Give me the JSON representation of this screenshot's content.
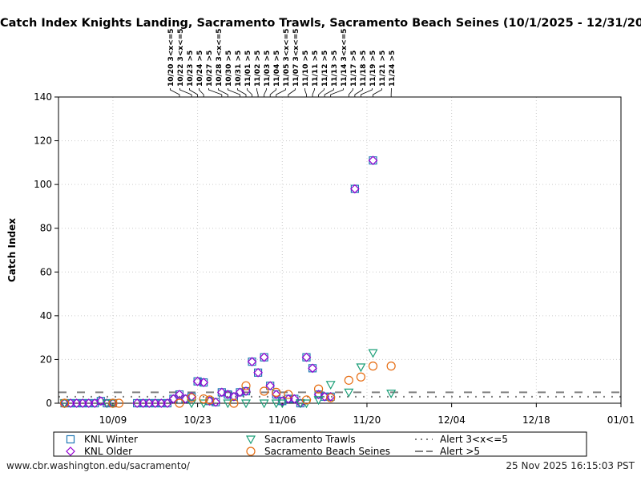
{
  "chart_data": {
    "type": "scatter",
    "title": "Catch Index Knights Landing, Sacramento Trawls, Sacramento Beach Seines (10/1/2025 - 12/31/2025)",
    "ylabel": "Catch Index",
    "xlabel": "",
    "xlim": [
      "2025-09-30",
      "2026-01-01"
    ],
    "ylim": [
      0,
      140
    ],
    "yticks": [
      0,
      20,
      40,
      60,
      80,
      100,
      120,
      140
    ],
    "xticks": [
      {
        "date": "2025-10-09",
        "label": "10/09"
      },
      {
        "date": "2025-10-23",
        "label": "10/23"
      },
      {
        "date": "2025-11-06",
        "label": "11/06"
      },
      {
        "date": "2025-11-20",
        "label": "11/20"
      },
      {
        "date": "2025-12-04",
        "label": "12/04"
      },
      {
        "date": "2025-12-18",
        "label": "12/18"
      },
      {
        "date": "2026-01-01",
        "label": "01/01"
      }
    ],
    "grid": true,
    "legend_placement": "bottom",
    "series": [
      {
        "name": "KNL Winter",
        "marker": "square",
        "color": "#1f77b4",
        "points": [
          [
            "2025-10-01",
            0
          ],
          [
            "2025-10-02",
            0
          ],
          [
            "2025-10-03",
            0
          ],
          [
            "2025-10-04",
            0
          ],
          [
            "2025-10-05",
            0
          ],
          [
            "2025-10-06",
            0
          ],
          [
            "2025-10-07",
            1
          ],
          [
            "2025-10-08",
            0
          ],
          [
            "2025-10-09",
            0
          ],
          [
            "2025-10-13",
            0
          ],
          [
            "2025-10-14",
            0
          ],
          [
            "2025-10-15",
            0
          ],
          [
            "2025-10-16",
            0
          ],
          [
            "2025-10-17",
            0
          ],
          [
            "2025-10-18",
            0
          ],
          [
            "2025-10-19",
            2
          ],
          [
            "2025-10-20",
            4
          ],
          [
            "2025-10-21",
            2
          ],
          [
            "2025-10-22",
            3
          ],
          [
            "2025-10-23",
            10
          ],
          [
            "2025-10-24",
            9.5
          ],
          [
            "2025-10-25",
            1
          ],
          [
            "2025-10-26",
            0.5
          ],
          [
            "2025-10-27",
            5
          ],
          [
            "2025-10-28",
            4
          ],
          [
            "2025-10-29",
            3
          ],
          [
            "2025-10-30",
            5
          ],
          [
            "2025-10-31",
            5.5
          ],
          [
            "2025-11-01",
            19
          ],
          [
            "2025-11-02",
            14
          ],
          [
            "2025-11-03",
            21
          ],
          [
            "2025-11-04",
            8
          ],
          [
            "2025-11-05",
            4
          ],
          [
            "2025-11-06",
            1
          ],
          [
            "2025-11-07",
            2
          ],
          [
            "2025-11-08",
            2
          ],
          [
            "2025-11-09",
            0
          ],
          [
            "2025-11-10",
            21
          ],
          [
            "2025-11-11",
            16
          ],
          [
            "2025-11-12",
            4
          ],
          [
            "2025-11-13",
            3
          ],
          [
            "2025-11-14",
            3
          ],
          [
            "2025-11-18",
            98
          ],
          [
            "2025-11-21",
            111
          ]
        ]
      },
      {
        "name": "KNL Older",
        "marker": "diamond",
        "color": "#9400d3",
        "points": [
          [
            "2025-10-01",
            0
          ],
          [
            "2025-10-02",
            0
          ],
          [
            "2025-10-03",
            0
          ],
          [
            "2025-10-04",
            0
          ],
          [
            "2025-10-05",
            0
          ],
          [
            "2025-10-06",
            0
          ],
          [
            "2025-10-07",
            1
          ],
          [
            "2025-10-08",
            0
          ],
          [
            "2025-10-09",
            0
          ],
          [
            "2025-10-13",
            0
          ],
          [
            "2025-10-14",
            0
          ],
          [
            "2025-10-15",
            0
          ],
          [
            "2025-10-16",
            0
          ],
          [
            "2025-10-17",
            0
          ],
          [
            "2025-10-18",
            0
          ],
          [
            "2025-10-19",
            2
          ],
          [
            "2025-10-20",
            4
          ],
          [
            "2025-10-21",
            2
          ],
          [
            "2025-10-22",
            3
          ],
          [
            "2025-10-23",
            10
          ],
          [
            "2025-10-24",
            9.5
          ],
          [
            "2025-10-25",
            1
          ],
          [
            "2025-10-26",
            0.5
          ],
          [
            "2025-10-27",
            5
          ],
          [
            "2025-10-28",
            4
          ],
          [
            "2025-10-29",
            3
          ],
          [
            "2025-10-30",
            5
          ],
          [
            "2025-10-31",
            5.5
          ],
          [
            "2025-11-01",
            19
          ],
          [
            "2025-11-02",
            14
          ],
          [
            "2025-11-03",
            21
          ],
          [
            "2025-11-04",
            8
          ],
          [
            "2025-11-05",
            4
          ],
          [
            "2025-11-06",
            1
          ],
          [
            "2025-11-07",
            2
          ],
          [
            "2025-11-08",
            2
          ],
          [
            "2025-11-09",
            0
          ],
          [
            "2025-11-10",
            21
          ],
          [
            "2025-11-11",
            16
          ],
          [
            "2025-11-12",
            4
          ],
          [
            "2025-11-13",
            3
          ],
          [
            "2025-11-14",
            3
          ],
          [
            "2025-11-18",
            98
          ],
          [
            "2025-11-21",
            111
          ]
        ]
      },
      {
        "name": "Sacramento Trawls",
        "marker": "triangle-down",
        "color": "#1a9e77",
        "points": [
          [
            "2025-10-01",
            0
          ],
          [
            "2025-10-08",
            0
          ],
          [
            "2025-10-09",
            0
          ],
          [
            "2025-10-22",
            0
          ],
          [
            "2025-10-24",
            0
          ],
          [
            "2025-10-28",
            0
          ],
          [
            "2025-10-31",
            0
          ],
          [
            "2025-11-03",
            0
          ],
          [
            "2025-11-05",
            0
          ],
          [
            "2025-11-06",
            0
          ],
          [
            "2025-11-09",
            0
          ],
          [
            "2025-11-10",
            0
          ],
          [
            "2025-11-12",
            1.5
          ],
          [
            "2025-11-14",
            8.5
          ],
          [
            "2025-11-17",
            5
          ],
          [
            "2025-11-19",
            16.5
          ],
          [
            "2025-11-21",
            23
          ],
          [
            "2025-11-24",
            4.5
          ]
        ]
      },
      {
        "name": "Sacramento Beach Seines",
        "marker": "circle",
        "color": "#e66b0f",
        "points": [
          [
            "2025-10-01",
            0
          ],
          [
            "2025-10-09",
            0
          ],
          [
            "2025-10-10",
            0
          ],
          [
            "2025-10-20",
            0
          ],
          [
            "2025-10-22",
            2.5
          ],
          [
            "2025-10-24",
            2
          ],
          [
            "2025-10-25",
            1.5
          ],
          [
            "2025-10-29",
            0
          ],
          [
            "2025-10-31",
            8
          ],
          [
            "2025-11-03",
            5.5
          ],
          [
            "2025-11-05",
            5
          ],
          [
            "2025-11-07",
            4
          ],
          [
            "2025-11-10",
            1.5
          ],
          [
            "2025-11-12",
            6.5
          ],
          [
            "2025-11-14",
            2.5
          ],
          [
            "2025-11-17",
            10.5
          ],
          [
            "2025-11-19",
            12
          ],
          [
            "2025-11-21",
            17
          ],
          [
            "2025-11-24",
            17
          ]
        ]
      }
    ],
    "reference_lines": [
      {
        "name": "Alert 3<x<=5",
        "value": 3,
        "style": "dotted",
        "color": "#808080"
      },
      {
        "name": "Alert >5",
        "value": 5,
        "style": "dashed",
        "color": "#808080"
      }
    ],
    "annotations": [
      {
        "date": "2025-10-20",
        "label": "10/20 3<x<=5"
      },
      {
        "date": "2025-10-22",
        "label": "10/22 3<x<=5"
      },
      {
        "date": "2025-10-23",
        "label": "10/23 >5"
      },
      {
        "date": "2025-10-24",
        "label": "10/24 >5"
      },
      {
        "date": "2025-10-27",
        "label": "10/27 >5"
      },
      {
        "date": "2025-10-28",
        "label": "10/28 3<x<=5"
      },
      {
        "date": "2025-10-30",
        "label": "10/30 >5"
      },
      {
        "date": "2025-10-31",
        "label": "10/31 >5"
      },
      {
        "date": "2025-11-01",
        "label": "11/01 >5"
      },
      {
        "date": "2025-11-02",
        "label": "11/02 >5"
      },
      {
        "date": "2025-11-03",
        "label": "11/03 >5"
      },
      {
        "date": "2025-11-04",
        "label": "11/04 >5"
      },
      {
        "date": "2025-11-05",
        "label": "11/05 3<x<=5"
      },
      {
        "date": "2025-11-07",
        "label": "11/07 3<x<=5"
      },
      {
        "date": "2025-11-10",
        "label": "11/10 >5"
      },
      {
        "date": "2025-11-11",
        "label": "11/11 >5"
      },
      {
        "date": "2025-11-12",
        "label": "11/12 >5"
      },
      {
        "date": "2025-11-13",
        "label": "11/13 >5"
      },
      {
        "date": "2025-11-14",
        "label": "11/14 3<x<=5"
      },
      {
        "date": "2025-11-17",
        "label": "11/17 >5"
      },
      {
        "date": "2025-11-18",
        "label": "11/18 >5"
      },
      {
        "date": "2025-11-19",
        "label": "11/19 >5"
      },
      {
        "date": "2025-11-21",
        "label": "11/21 >5"
      },
      {
        "date": "2025-11-24",
        "label": "11/24 >5"
      }
    ]
  },
  "footer": {
    "source": "www.cbr.washington.edu/sacramento/",
    "timestamp": "25 Nov 2025 16:15:03 PST"
  }
}
